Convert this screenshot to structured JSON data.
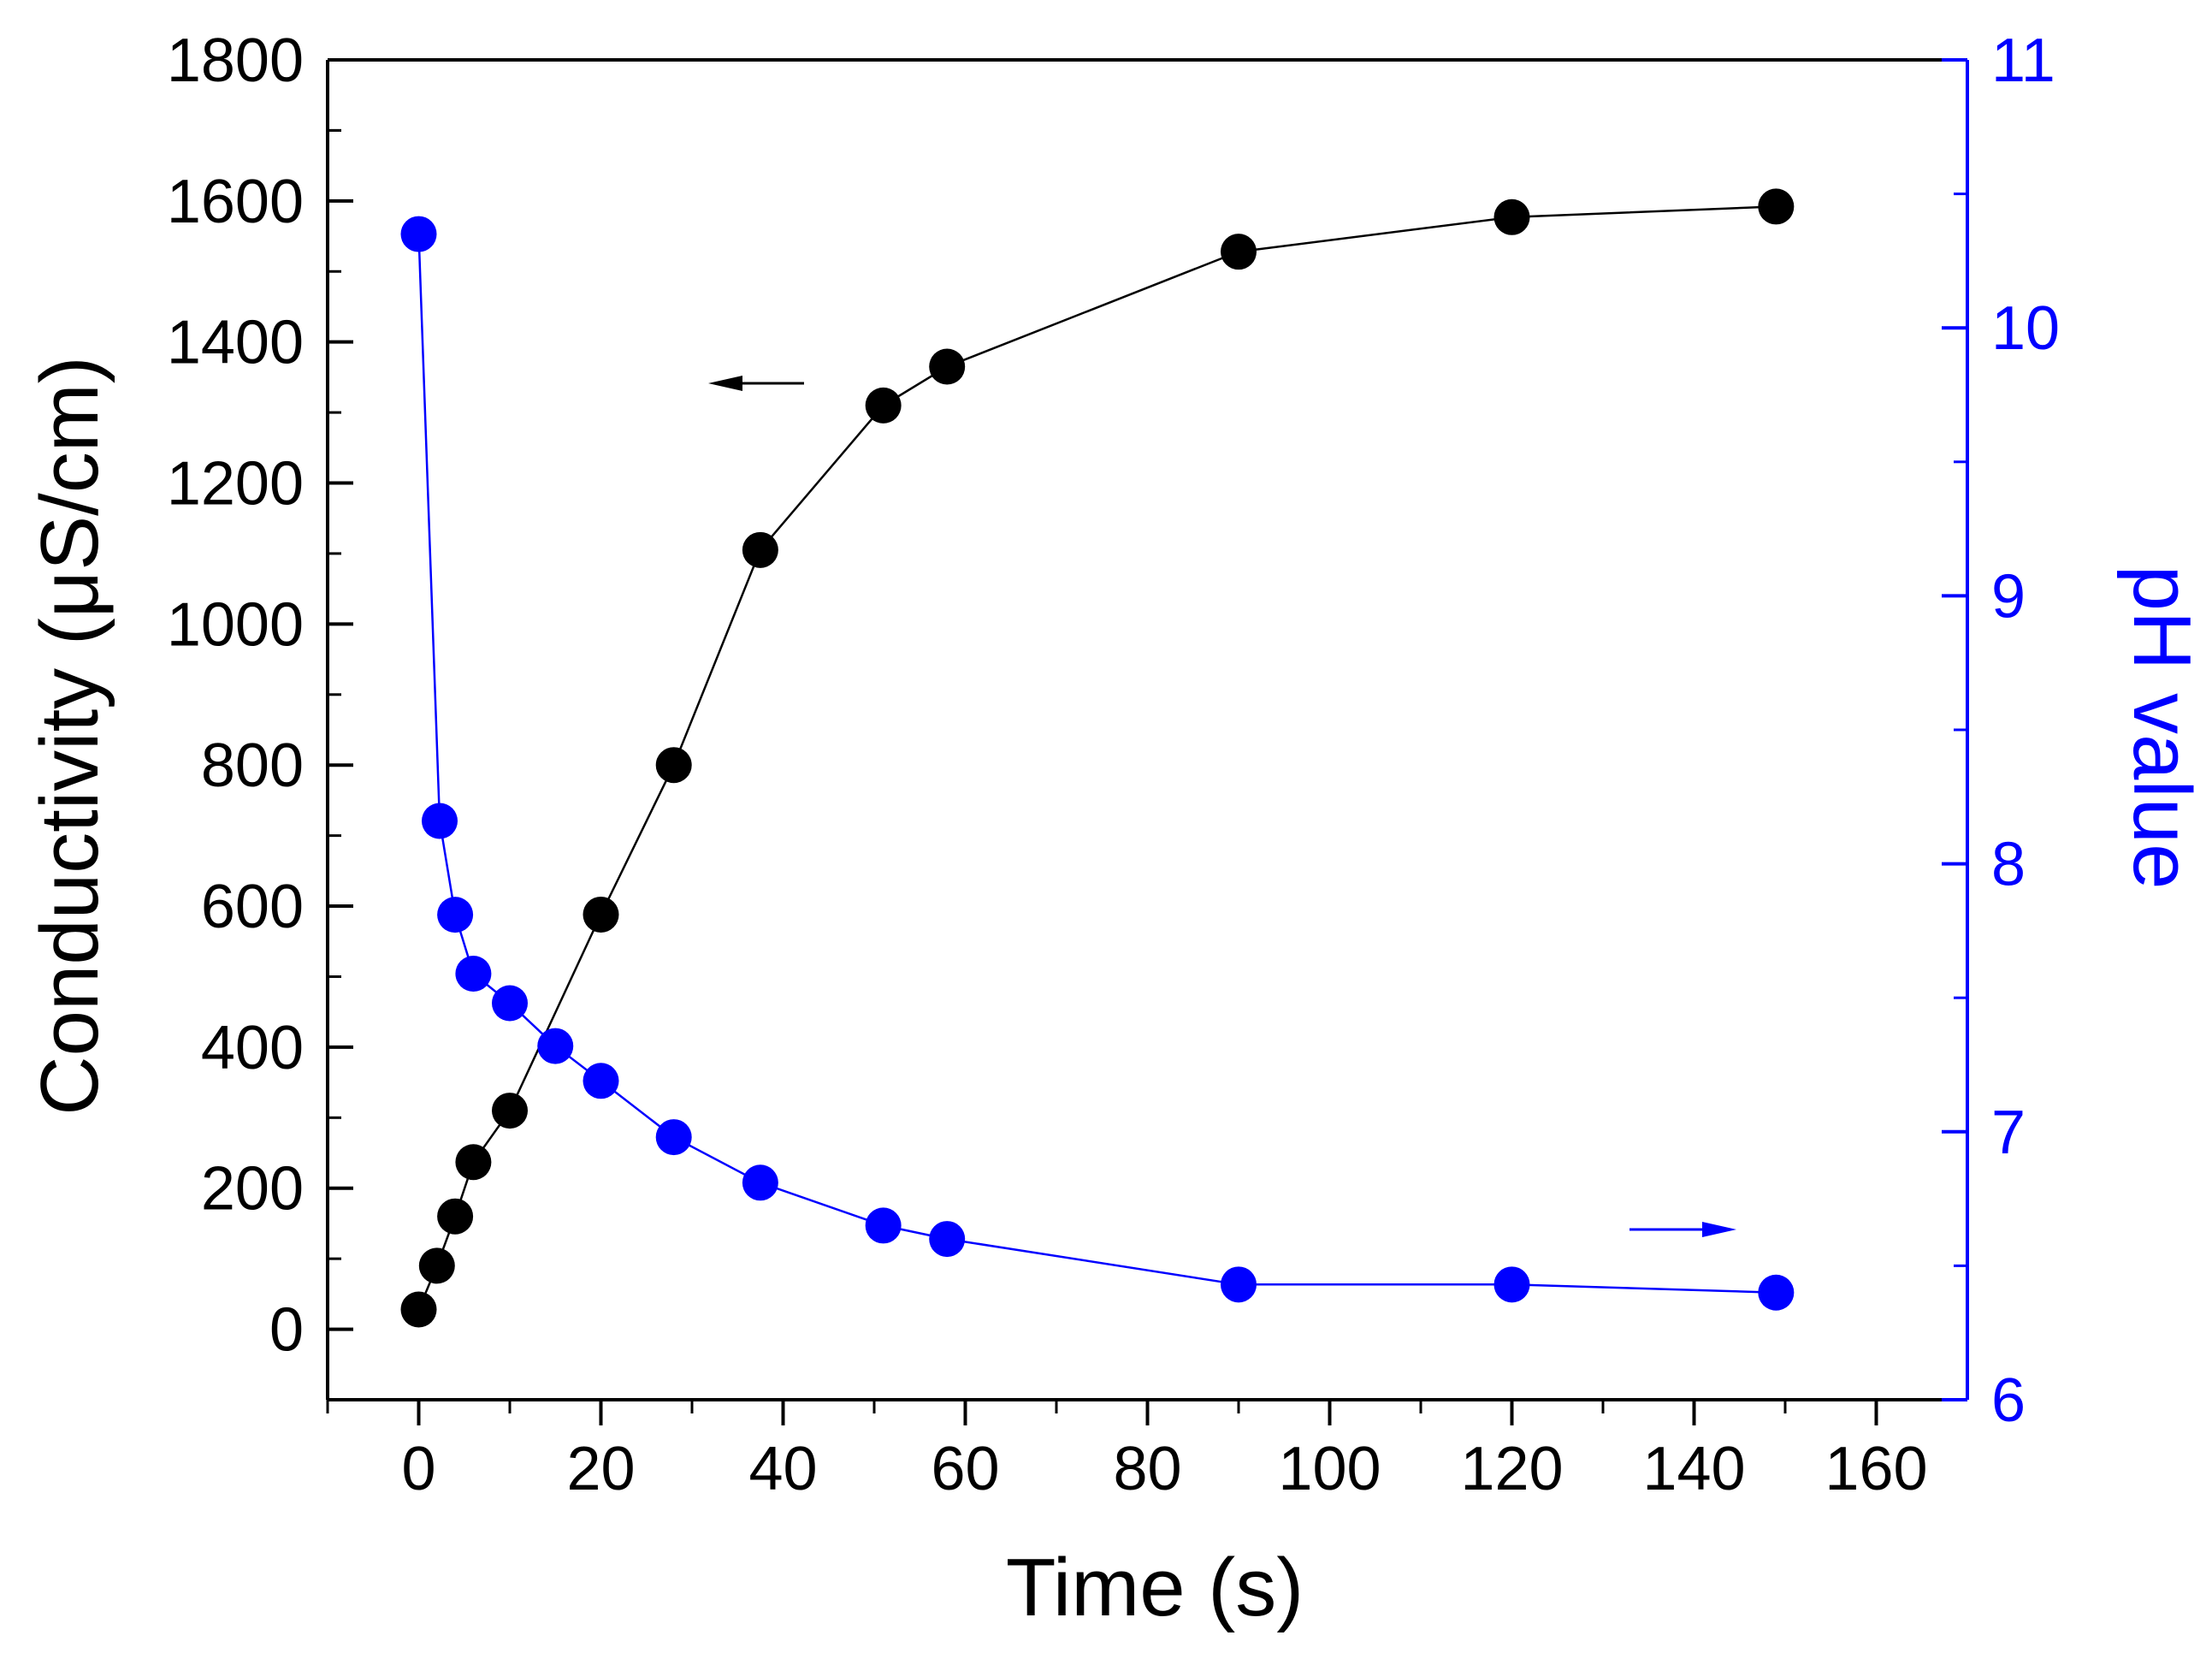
{
  "chart_data": {
    "type": "scatter",
    "title": "",
    "xlabel": "Time (s)",
    "ylabel": "Conductivity (μS/cm)",
    "y2label": "pH value",
    "xlim": [
      -10,
      170
    ],
    "ylim": [
      -100,
      1800
    ],
    "y2lim": [
      6,
      11
    ],
    "xticks": [
      0,
      20,
      40,
      60,
      80,
      100,
      120,
      140,
      160
    ],
    "yticks": [
      0,
      200,
      400,
      600,
      800,
      1000,
      1200,
      1400,
      1600,
      1800
    ],
    "y2ticks": [
      6,
      7,
      8,
      9,
      10,
      11
    ],
    "grid": false,
    "series": [
      {
        "name": "Conductivity",
        "axis": "left",
        "color": "#000000",
        "x": [
          0,
          2,
          4,
          6,
          10,
          20,
          28,
          37.5,
          51,
          58,
          90,
          120,
          149
        ],
        "y": [
          28,
          90,
          160,
          237,
          310,
          588,
          800,
          1105,
          1310,
          1365,
          1528,
          1577,
          1592
        ]
      },
      {
        "name": "pH value",
        "axis": "right",
        "color": "#0000ff",
        "x": [
          0,
          2.3,
          4,
          6,
          10,
          15,
          20,
          28,
          37.5,
          51,
          58,
          90,
          120,
          149
        ],
        "y": [
          10.35,
          8.16,
          7.81,
          7.59,
          7.48,
          7.32,
          7.19,
          6.98,
          6.81,
          6.65,
          6.6,
          6.43,
          6.43,
          6.4
        ]
      }
    ],
    "annotations": [
      {
        "type": "arrow",
        "direction": "left",
        "color": "#000000",
        "points_to": "Conductivity axis"
      },
      {
        "type": "arrow",
        "direction": "right",
        "color": "#0000ff",
        "points_to": "pH value axis"
      }
    ]
  }
}
